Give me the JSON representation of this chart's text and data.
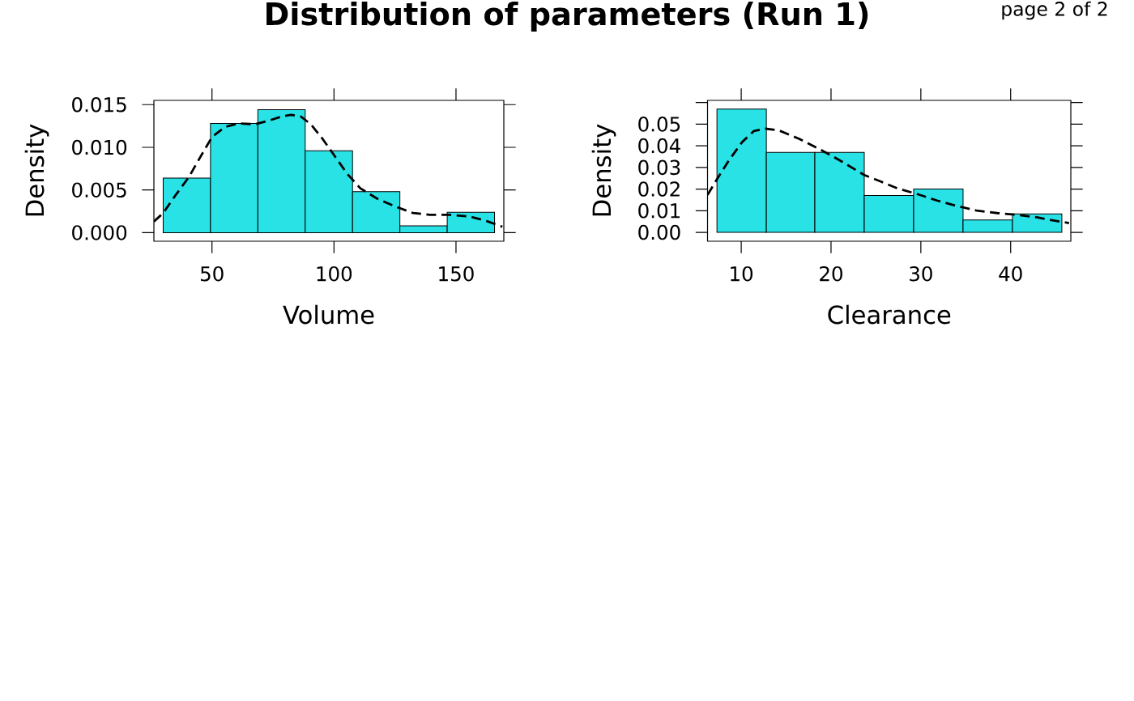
{
  "chart_data": [
    {
      "type": "histogram",
      "title": "Distribution of parameters (Run 1)",
      "xlabel": "Volume",
      "ylabel": "Density",
      "bins": [
        30,
        49.4,
        68.8,
        88.2,
        107.6,
        127,
        146.4,
        165.8
      ],
      "values": [
        0.0064,
        0.0128,
        0.0144,
        0.0096,
        0.0048,
        0.0008,
        0.0024
      ],
      "color": "#29e2e6",
      "series": [
        {
          "type": "line",
          "color": "#000000",
          "line_style": "dashed",
          "x": [
            26.2,
            30,
            35.1,
            40.5,
            45.3,
            50,
            55.4,
            60.8,
            67.6,
            73,
            78.4,
            82.4,
            86.5,
            90.5,
            95.3,
            100,
            105.4,
            110.8,
            117.6,
            125.7,
            132.4,
            139.2,
            147.3,
            155.4,
            162.2,
            169
          ],
          "values": [
            0.0013,
            0.0023,
            0.0044,
            0.0065,
            0.0089,
            0.0112,
            0.0124,
            0.0128,
            0.0127,
            0.0131,
            0.0136,
            0.0138,
            0.0136,
            0.0127,
            0.011,
            0.0091,
            0.0069,
            0.0052,
            0.004,
            0.003,
            0.0023,
            0.0021,
            0.0021,
            0.0019,
            0.0014,
            0.0007
          ]
        }
      ],
      "xlim": [
        26.2,
        169.6
      ],
      "ylim": [
        -0.001,
        0.0155
      ],
      "xticks": [
        50,
        100,
        150
      ],
      "yticks": [
        {
          "value": 0,
          "label": "0.000"
        },
        {
          "value": 0.005,
          "label": "0.005"
        },
        {
          "value": 0.01,
          "label": "0.010"
        },
        {
          "value": 0.015,
          "label": "0.015"
        }
      ]
    },
    {
      "type": "histogram",
      "xlabel": "Clearance",
      "ylabel": "Density",
      "annotations": [
        "page 2 of 2"
      ],
      "bins": [
        7.3,
        12.8,
        18.2,
        23.7,
        29.2,
        34.7,
        40.2,
        45.7
      ],
      "values": [
        0.057,
        0.037,
        0.037,
        0.017,
        0.02,
        0.0057,
        0.0085
      ],
      "color": "#29e2e6",
      "series": [
        {
          "type": "line",
          "color": "#000000",
          "line_style": "dashed",
          "x": [
            6.25,
            7.35,
            8.64,
            10.1,
            11.4,
            12.7,
            14.2,
            16.4,
            18.6,
            20,
            21.9,
            23.7,
            25.6,
            27.4,
            29.6,
            31.8,
            34,
            36.2,
            38.5,
            40.7,
            42.9,
            44.3,
            46.5
          ],
          "values": [
            0.0173,
            0.0249,
            0.0333,
            0.0417,
            0.0468,
            0.0479,
            0.0471,
            0.0433,
            0.0387,
            0.0356,
            0.031,
            0.0265,
            0.0234,
            0.0203,
            0.0177,
            0.0147,
            0.0122,
            0.0101,
            0.0089,
            0.0081,
            0.007,
            0.0058,
            0.0043
          ]
        }
      ],
      "xlim": [
        6.25,
        46.7
      ],
      "ylim": [
        -0.0041,
        0.061
      ],
      "xticks": [
        10,
        20,
        30,
        40
      ],
      "yticks": [
        {
          "value": 0,
          "label": "0.00"
        },
        {
          "value": 0.01,
          "label": "0.01"
        },
        {
          "value": 0.02,
          "label": "0.02"
        },
        {
          "value": 0.03,
          "label": "0.03"
        },
        {
          "value": 0.04,
          "label": "0.04"
        },
        {
          "value": 0.05,
          "label": "0.05"
        },
        {
          "value": 0.06,
          "label": null
        }
      ]
    }
  ]
}
